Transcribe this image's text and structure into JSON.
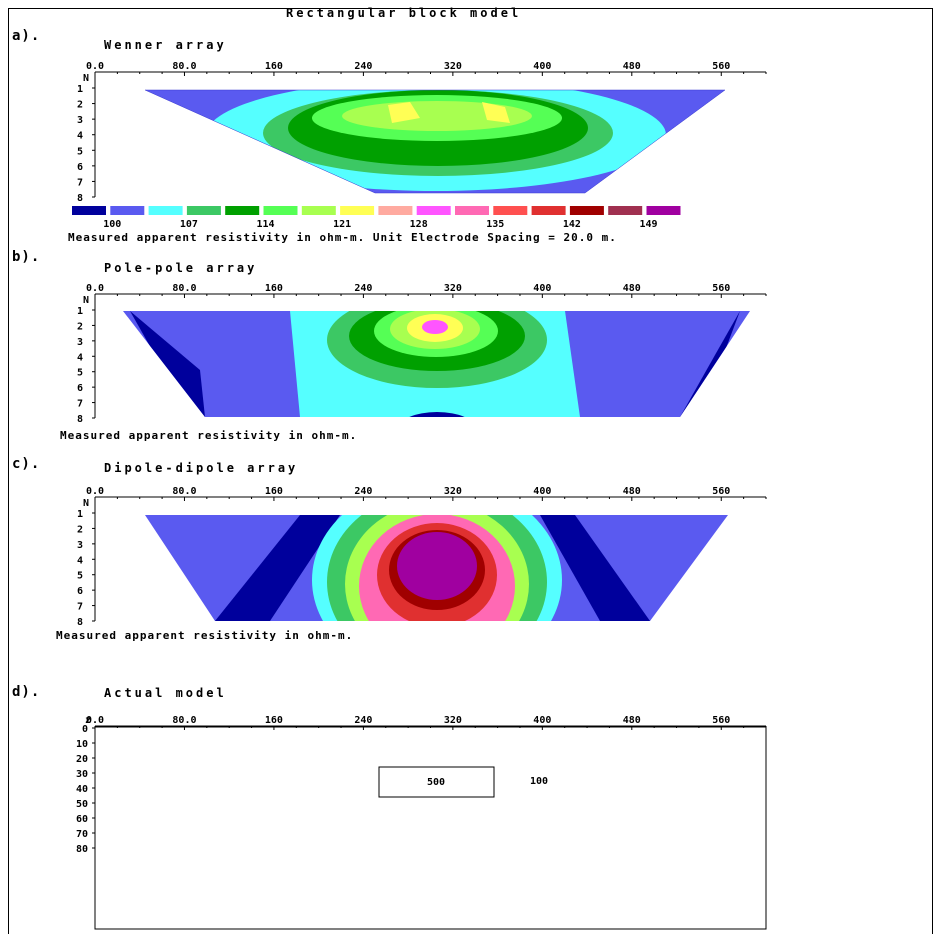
{
  "title": "Rectangular block model",
  "x_ticks": [
    "0.0",
    "80.0",
    "160",
    "240",
    "320",
    "400",
    "480",
    "560"
  ],
  "n_label": "N",
  "n_ticks": [
    "1",
    "2",
    "3",
    "4",
    "5",
    "6",
    "7",
    "8"
  ],
  "panels": [
    {
      "id": "a",
      "label": "a).",
      "title": "Wenner array"
    },
    {
      "id": "b",
      "label": "b).",
      "title": "Pole-pole array"
    },
    {
      "id": "c",
      "label": "c).",
      "title": "Dipole-dipole array"
    },
    {
      "id": "d",
      "label": "d).",
      "title": "Actual model"
    }
  ],
  "legend": {
    "colors": [
      "#00009c",
      "#5a5af0",
      "#55ffff",
      "#3cc864",
      "#00a000",
      "#55ff55",
      "#a8ff50",
      "#ffff55",
      "#ffaaa0",
      "#ff55ff",
      "#ff69b4",
      "#ff5050",
      "#e03030",
      "#a00000",
      "#a03050",
      "#a000a0"
    ],
    "labels": [
      "100",
      "107",
      "114",
      "121",
      "128",
      "135",
      "142",
      "149"
    ]
  },
  "caption_a": "Measured apparent resistivity in ohm-m.  Unit Electrode Spacing = 20.0 m.",
  "caption_b": "Measured apparent resistivity in ohm-m.",
  "caption_c": "Measured apparent resistivity in ohm-m.",
  "model": {
    "z_label": "z",
    "z_ticks": [
      "0",
      "10",
      "20",
      "30",
      "40",
      "50",
      "60",
      "70",
      "80"
    ],
    "block_value": "500",
    "background_value": "100"
  }
}
